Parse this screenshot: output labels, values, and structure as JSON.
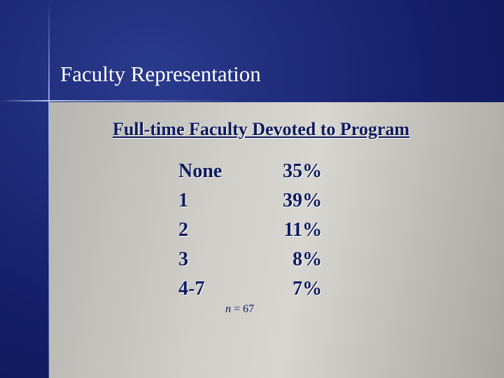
{
  "slide": {
    "title": "Faculty Representation",
    "table": {
      "heading": "Full-time Faculty Devoted to Program",
      "rows": [
        [
          "None",
          "35%"
        ],
        [
          "1",
          "39%"
        ],
        [
          "2",
          "11%"
        ],
        [
          "3",
          "8%"
        ],
        [
          "4-7",
          "7%"
        ]
      ],
      "note": {
        "symbol": "n",
        "text": "= 67"
      }
    }
  }
}
